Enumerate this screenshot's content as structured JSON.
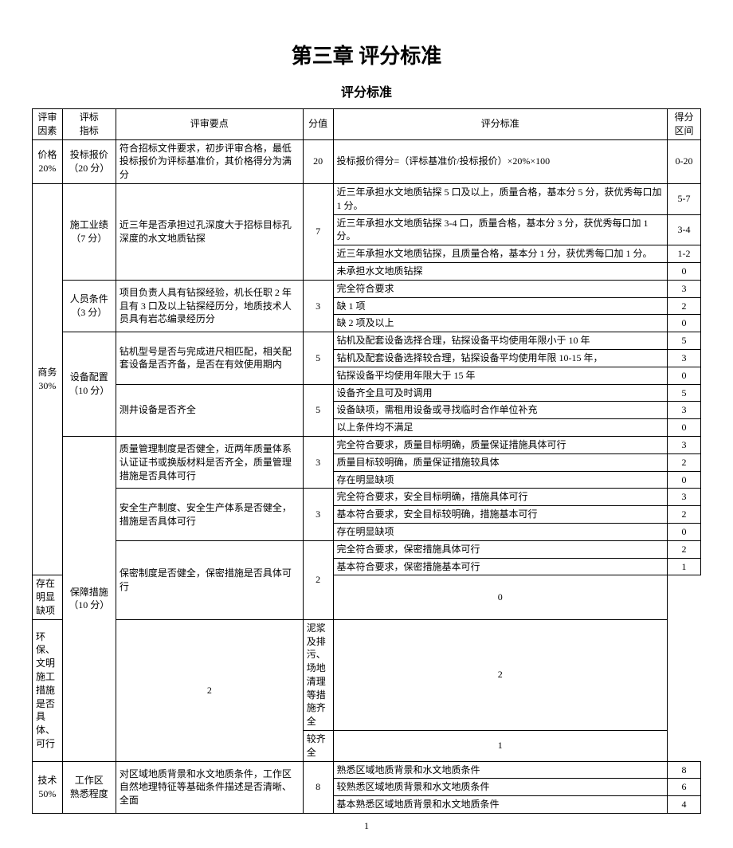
{
  "chapter_title": "第三章  评分标准",
  "sub_title": "评分标准",
  "headers": {
    "factor": "评审\n因素",
    "indicator": "评标\n指标",
    "point": "评审要点",
    "score": "分值",
    "standard": "评分标准",
    "range": "得分\n区间"
  },
  "price": {
    "factor": "价格\n20%",
    "indicator": "投标报价\n（20 分）",
    "point": "符合招标文件要求，初步评审合格，最低投标报价为评标基准价，其价格得分为满分",
    "score": "20",
    "standard": "投标报价得分=（评标基准价/投标报价）×20%×100",
    "range": "0-20"
  },
  "business": {
    "factor": "商务\n30%",
    "perf": {
      "indicator": "施工业绩\n（7 分）",
      "point": "近三年是否承担过孔深度大于招标目标孔深度的水文地质钻探",
      "score": "7",
      "r1s": "近三年承担水文地质钻探 5 口及以上，质量合格，基本分 5 分，获优秀每口加 1 分。",
      "r1r": "5-7",
      "r2s": "近三年承担水文地质钻探 3-4 口，质量合格，基本分 3 分，获优秀每口加 1 分。",
      "r2r": "3-4",
      "r3s": "近三年承担水文地质钻探，且质量合格，基本分 1 分，获优秀每口加 1 分。",
      "r3r": "1-2",
      "r4s": "未承担水文地质钻探",
      "r4r": "0"
    },
    "staff": {
      "indicator": "人员条件\n（3 分）",
      "point": "项目负责人具有钻探经验，机长任职 2 年且有 3 口及以上钻探经历分，地质技术人员具有岩芯编录经历分",
      "score": "3",
      "r1s": "完全符合要求",
      "r1r": "3",
      "r2s": "缺 1 项",
      "r2r": "2",
      "r3s": "缺 2 项及以上",
      "r3r": "0"
    },
    "equip": {
      "indicator": "设备配置\n（10 分）",
      "p1": "钻机型号是否与完成进尺相匹配，相关配套设备是否齐备，是否在有效使用期内",
      "s1": "5",
      "r1s": "钻机及配套设备选择合理，钻探设备平均使用年限小于 10 年",
      "r1r": "5",
      "r2s": "钻机及配套设备选择较合理，钻探设备平均使用年限 10-15 年，",
      "r2r": "3",
      "r3s": "钻探设备平均使用年限大于 15 年",
      "r3r": "0",
      "p2": "测井设备是否齐全",
      "s2": "5",
      "r4s": "设备齐全且可及时调用",
      "r4r": "5",
      "r5s": "设备缺项，需租用设备或寻找临时合作单位补充",
      "r5r": "3",
      "r6s": "以上条件均不满足",
      "r6r": "0"
    },
    "guar": {
      "indicator": "保障措施\n（10 分）",
      "p1": "质量管理制度是否健全，近两年质量体系认证证书或换版材料是否齐全，质量管理措施是否具体可行",
      "s1": "3",
      "q1s": "完全符合要求，质量目标明确，质量保证措施具体可行",
      "q1r": "3",
      "q2s": "质量目标较明确，质量保证措施较具体",
      "q2r": "2",
      "q3s": "存在明显缺项",
      "q3r": "0",
      "p2": "安全生产制度、安全生产体系是否健全，措施是否具体可行",
      "s2": "3",
      "a1s": "完全符合要求，安全目标明确，措施具体可行",
      "a1r": "3",
      "a2s": "基本符合要求，安全目标较明确，措施基本可行",
      "a2r": "2",
      "a3s": "存在明显缺项",
      "a3r": "0",
      "p3": "保密制度是否健全，保密措施是否具体可行",
      "s3": "2",
      "c1s": "完全符合要求，保密措施具体可行",
      "c1r": "2",
      "c2s": "基本符合要求，保密措施基本可行",
      "c2r": "1",
      "c3s": "存在明显缺项",
      "c3r": "0",
      "p4": "环保、文明施工措施是否具体、可行",
      "s4": "2",
      "e1s": "泥浆及排污、场地清理等措施齐全",
      "e1r": "2",
      "e2s": "较齐全",
      "e2r": "1"
    }
  },
  "tech": {
    "factor": "技术\n50%",
    "fam": {
      "indicator": "工作区\n熟悉程度",
      "point": "对区域地质背景和水文地质条件，工作区自然地理特征等基础条件描述是否清晰、全面",
      "score": "8",
      "r1s": "熟悉区域地质背景和水文地质条件",
      "r1r": "8",
      "r2s": "较熟悉区域地质背景和水文地质条件",
      "r2r": "6",
      "r3s": "基本熟悉区域地质背景和水文地质条件",
      "r3r": "4"
    }
  },
  "page_num": "1"
}
